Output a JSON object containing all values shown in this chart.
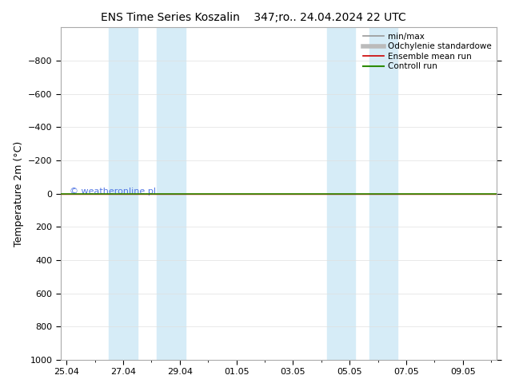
{
  "title_left": "ENS Time Series Koszalin",
  "title_right": "347;ro.. 24.04.2024 22 UTC",
  "ylabel": "Temperature 2m (°C)",
  "ylim": [
    -1000,
    1000
  ],
  "yticks": [
    -800,
    -600,
    -400,
    -200,
    0,
    200,
    400,
    600,
    800,
    1000
  ],
  "xtick_labels": [
    "25.04",
    "27.04",
    "29.04",
    "01.05",
    "03.05",
    "05.05",
    "07.05",
    "09.05"
  ],
  "xtick_positions": [
    0,
    2,
    4,
    6,
    8,
    10,
    12,
    14
  ],
  "xlim": [
    -0.2,
    15.2
  ],
  "shaded_bands": [
    [
      1.5,
      2.5
    ],
    [
      3.2,
      4.2
    ],
    [
      9.2,
      10.2
    ],
    [
      10.7,
      11.7
    ]
  ],
  "band_color": "#d6ecf7",
  "hline_y": 0,
  "hline_color_green": "#2e8b00",
  "hline_color_red": "#cc0000",
  "watermark": "© weatheronline.pl",
  "watermark_color": "#4169e1",
  "legend_items": [
    {
      "label": "min/max",
      "color": "#999999",
      "lw": 1.2
    },
    {
      "label": "Odchylenie standardowe",
      "color": "#bbbbbb",
      "lw": 4
    },
    {
      "label": "Ensemble mean run",
      "color": "#cc0000",
      "lw": 1.2
    },
    {
      "label": "Controll run",
      "color": "#2e8b00",
      "lw": 1.5
    }
  ],
  "bg_color": "#ffffff",
  "grid_color": "#e0e0e0",
  "title_fontsize": 10,
  "label_fontsize": 9,
  "tick_fontsize": 8,
  "legend_fontsize": 7.5
}
